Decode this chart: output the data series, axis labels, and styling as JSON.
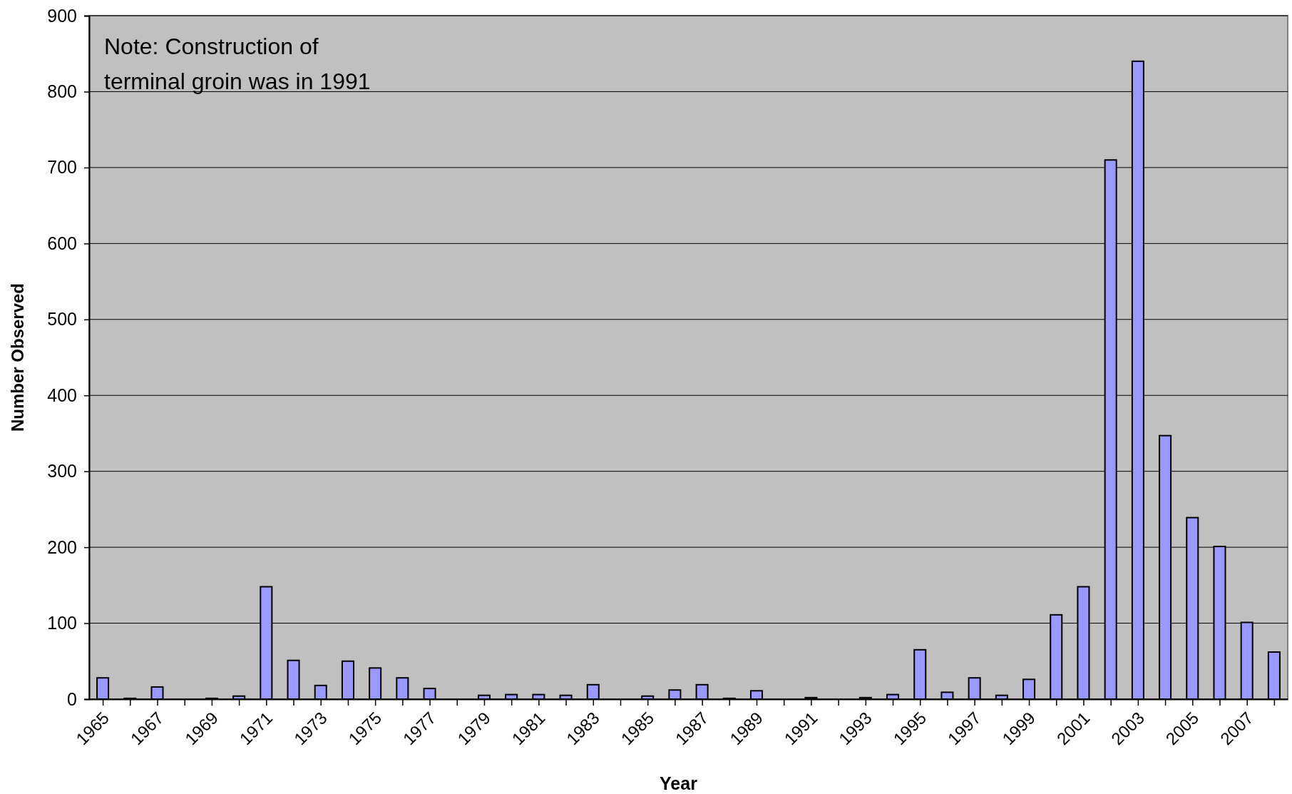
{
  "chart_data": {
    "type": "bar",
    "xlabel": "Year",
    "ylabel": "Number Observed",
    "annotations": [
      "Note: Construction of terminal groin was in 1991"
    ],
    "categories": [
      "1965",
      null,
      "1967",
      null,
      "1969",
      null,
      "1971",
      null,
      "1973",
      null,
      "1975",
      null,
      "1977",
      null,
      "1979",
      null,
      "1981",
      null,
      "1983",
      null,
      "1985",
      null,
      "1987",
      null,
      "1989",
      null,
      "1991",
      null,
      "1993",
      null,
      "1995",
      null,
      "1997",
      null,
      "1999",
      null,
      "2001",
      null,
      "2003",
      null,
      "2005",
      null,
      "2007",
      null
    ],
    "values": [
      28,
      1,
      16,
      null,
      1,
      4,
      148,
      51,
      18,
      50,
      41,
      28,
      14,
      null,
      5,
      6,
      6,
      5,
      19,
      null,
      4,
      12,
      19,
      1,
      11,
      null,
      2,
      null,
      2,
      6,
      65,
      9,
      28,
      5,
      26,
      111,
      148,
      710,
      840,
      347,
      239,
      201,
      101,
      62
    ],
    "color": "#9999ff",
    "ylim": [
      0,
      900
    ],
    "yticks": [
      0,
      100,
      200,
      300,
      400,
      500,
      600,
      700,
      800,
      900
    ],
    "grid": "y"
  }
}
